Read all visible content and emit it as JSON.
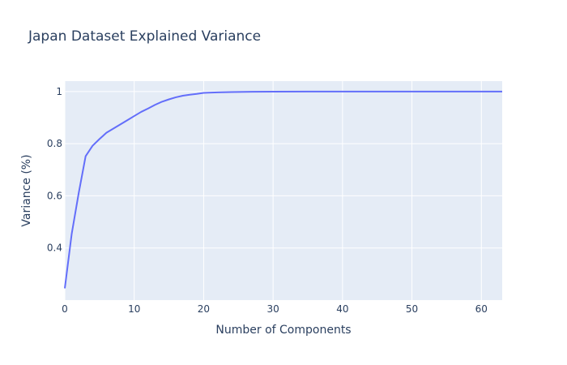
{
  "chart_data": {
    "type": "line",
    "title": "Japan Dataset Explained Variance",
    "xlabel": "Number of Components",
    "ylabel": "Variance (%)",
    "xlim": [
      0,
      63
    ],
    "ylim": [
      0.2,
      1.04
    ],
    "x_ticks": [
      0,
      10,
      20,
      30,
      40,
      50,
      60
    ],
    "x_tick_labels": [
      "0",
      "10",
      "20",
      "30",
      "40",
      "50",
      "60"
    ],
    "y_ticks": [
      0.4,
      0.6,
      0.8,
      1.0
    ],
    "y_tick_labels": [
      "0.4",
      "0.6",
      "0.8",
      "1"
    ],
    "grid": true,
    "series": [
      {
        "x": [
          0,
          1,
          2,
          3,
          4,
          5,
          6,
          7,
          8,
          9,
          10,
          11,
          12,
          13,
          14,
          15,
          16,
          17,
          18,
          19,
          20,
          22,
          24,
          27,
          30,
          35,
          40,
          45,
          50,
          55,
          60,
          63
        ],
        "y": [
          0.245,
          0.455,
          0.61,
          0.752,
          0.792,
          0.818,
          0.842,
          0.858,
          0.874,
          0.89,
          0.906,
          0.922,
          0.935,
          0.949,
          0.961,
          0.97,
          0.978,
          0.984,
          0.988,
          0.991,
          0.995,
          0.997,
          0.998,
          0.999,
          0.9995,
          0.9998,
          0.9999,
          1.0,
          1.0,
          1.0,
          1.0,
          1.0
        ]
      }
    ],
    "colors": {
      "line": "#636efa",
      "plot_bg": "#e5ecf6",
      "grid": "#ffffff",
      "text": "#2a3f5f"
    }
  }
}
